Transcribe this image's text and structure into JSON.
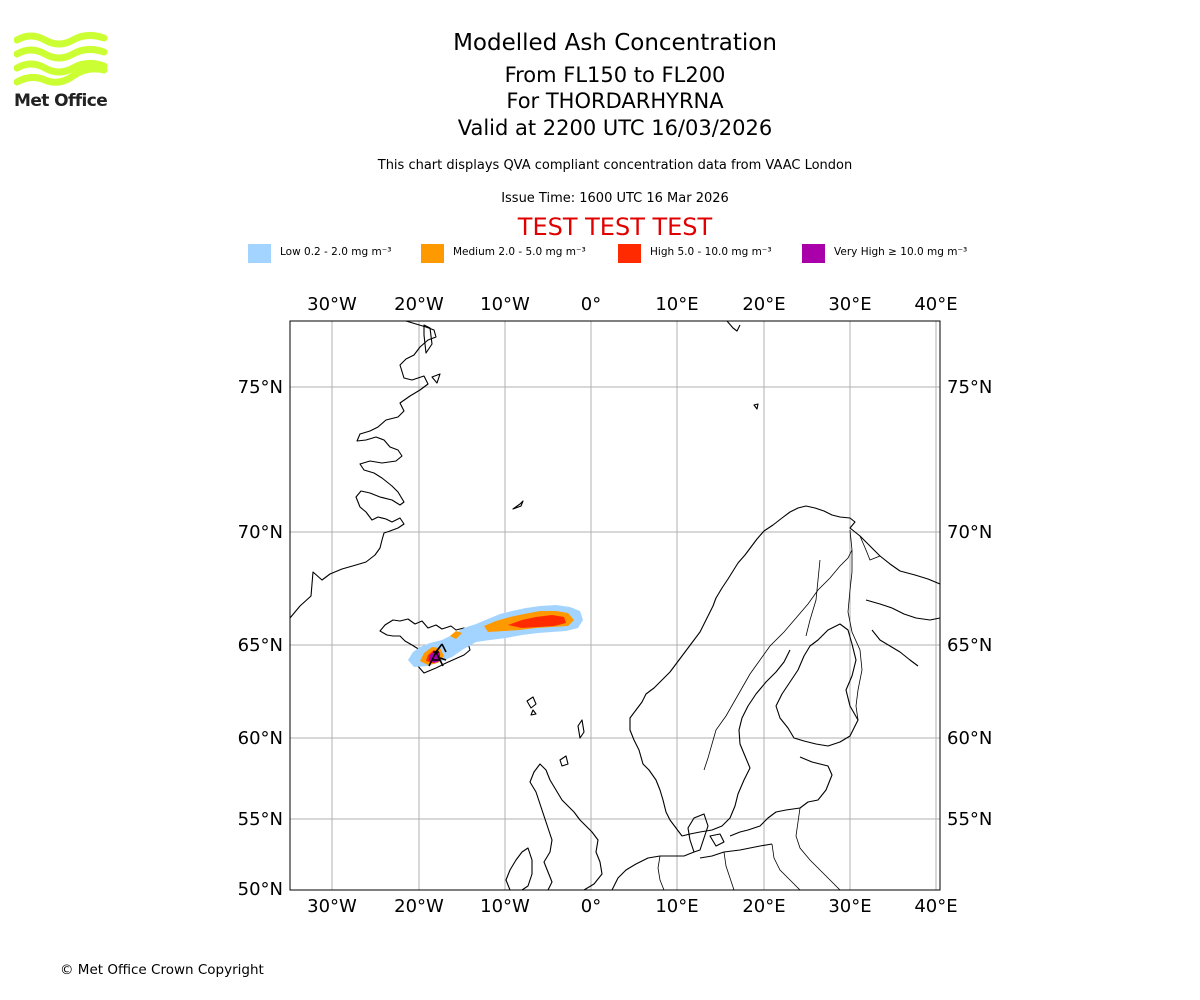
{
  "logo": {
    "text": "Met Office",
    "color": "#ccff33"
  },
  "title": {
    "main": "Modelled Ash Concentration",
    "levels": "From FL150 to FL200",
    "volcano": "For THORDARHYRNA",
    "valid": "Valid at 2200 UTC 16/03/2026",
    "description": "This chart displays QVA compliant concentration data from VAAC London",
    "issue": "Issue Time: 1600 UTC 16 Mar 2026",
    "test_banner": "TEST TEST TEST"
  },
  "legend": [
    {
      "label": "Low 0.2 - 2.0 mg m⁻³",
      "color": "#a3d4ff"
    },
    {
      "label": "Medium 2.0 - 5.0 mg m⁻³",
      "color": "#ff9900"
    },
    {
      "label": "High 5.0 - 10.0 mg m⁻³",
      "color": "#ff2a00"
    },
    {
      "label": "Very High  ≥  10.0 mg m⁻³",
      "color": "#aa00aa"
    }
  ],
  "map": {
    "lon_range": [
      -35,
      40
    ],
    "lat_range": [
      50,
      77.5
    ],
    "lon_ticks": [
      "30°W",
      "20°W",
      "10°W",
      "0°",
      "10°E",
      "20°E",
      "30°E",
      "40°E"
    ],
    "lat_ticks": [
      "75°N",
      "70°N",
      "65°N",
      "60°N",
      "55°N",
      "50°N"
    ],
    "volcano_marker": "volcano-icon"
  },
  "copyright": "© Met Office Crown Copyright"
}
